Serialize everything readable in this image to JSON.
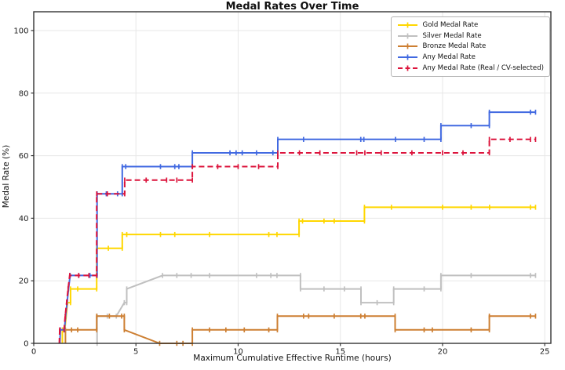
{
  "chart_data": {
    "type": "line",
    "title": "Medal Rates Over Time",
    "xlabel": "Maximum Cumulative Effective Runtime (hours)",
    "ylabel": "Medal Rate (%)",
    "xlim": [
      0,
      25.3
    ],
    "ylim": [
      0,
      106
    ],
    "xticks": [
      0,
      5,
      10,
      15,
      20,
      25
    ],
    "yticks": [
      0,
      20,
      40,
      60,
      80,
      100
    ],
    "grid": true,
    "legend_position": "upper right",
    "series": [
      {
        "name": "Gold Medal Rate",
        "color": "#FFD700",
        "dash": "solid",
        "points": [
          [
            1.4,
            0
          ],
          [
            1.4,
            4.3
          ],
          [
            1.52,
            4.3
          ],
          [
            1.65,
            13.0
          ],
          [
            1.8,
            13.0
          ],
          [
            1.8,
            17.4
          ],
          [
            2.15,
            17.4
          ],
          [
            3.08,
            17.4
          ],
          [
            3.08,
            30.4
          ],
          [
            3.65,
            30.4
          ],
          [
            4.33,
            30.4
          ],
          [
            4.33,
            34.8
          ],
          [
            4.55,
            34.8
          ],
          [
            6.2,
            34.8
          ],
          [
            6.9,
            34.8
          ],
          [
            8.6,
            34.8
          ],
          [
            11.5,
            34.8
          ],
          [
            11.9,
            34.8
          ],
          [
            12.98,
            34.8
          ],
          [
            12.98,
            39.1
          ],
          [
            13.15,
            39.1
          ],
          [
            14.2,
            39.1
          ],
          [
            14.7,
            39.1
          ],
          [
            16.18,
            39.1
          ],
          [
            16.18,
            43.5
          ],
          [
            17.5,
            43.5
          ],
          [
            20.0,
            43.5
          ],
          [
            21.4,
            43.5
          ],
          [
            22.3,
            43.5
          ],
          [
            24.3,
            43.5
          ],
          [
            24.55,
            43.5
          ]
        ]
      },
      {
        "name": "Silver Medal Rate",
        "color": "#C0C0C0",
        "dash": "solid",
        "points": [
          [
            3.1,
            0
          ],
          [
            3.1,
            8.7
          ],
          [
            3.6,
            8.7
          ],
          [
            4.04,
            8.7
          ],
          [
            4.43,
            13.0
          ],
          [
            4.55,
            13.0
          ],
          [
            4.55,
            17.4
          ],
          [
            6.3,
            21.7
          ],
          [
            7.0,
            21.7
          ],
          [
            7.7,
            21.7
          ],
          [
            8.6,
            21.7
          ],
          [
            10.9,
            21.7
          ],
          [
            11.6,
            21.7
          ],
          [
            11.9,
            21.7
          ],
          [
            13.05,
            21.7
          ],
          [
            13.05,
            17.4
          ],
          [
            14.2,
            17.4
          ],
          [
            15.2,
            17.4
          ],
          [
            16.01,
            17.4
          ],
          [
            16.01,
            13.0
          ],
          [
            16.8,
            13.0
          ],
          [
            17.61,
            13.0
          ],
          [
            17.61,
            17.4
          ],
          [
            19.1,
            17.4
          ],
          [
            19.92,
            17.4
          ],
          [
            19.92,
            21.7
          ],
          [
            21.4,
            21.7
          ],
          [
            24.3,
            21.7
          ],
          [
            24.55,
            21.7
          ]
        ]
      },
      {
        "name": "Bronze Medal Rate",
        "color": "#CD7F32",
        "dash": "solid",
        "points": [
          [
            1.55,
            0
          ],
          [
            1.55,
            4.3
          ],
          [
            1.85,
            4.3
          ],
          [
            2.15,
            4.3
          ],
          [
            3.08,
            4.3
          ],
          [
            3.08,
            8.7
          ],
          [
            3.7,
            8.7
          ],
          [
            4.3,
            8.7
          ],
          [
            4.43,
            8.7
          ],
          [
            4.43,
            4.3
          ],
          [
            6.16,
            0
          ],
          [
            7.0,
            0
          ],
          [
            7.3,
            0
          ],
          [
            7.76,
            0
          ],
          [
            7.76,
            4.3
          ],
          [
            8.6,
            4.3
          ],
          [
            9.4,
            4.3
          ],
          [
            10.3,
            4.3
          ],
          [
            11.5,
            4.3
          ],
          [
            11.92,
            4.3
          ],
          [
            11.92,
            8.7
          ],
          [
            13.2,
            8.7
          ],
          [
            13.45,
            8.7
          ],
          [
            14.7,
            8.7
          ],
          [
            16.0,
            8.7
          ],
          [
            16.2,
            8.7
          ],
          [
            17.68,
            8.7
          ],
          [
            17.68,
            4.3
          ],
          [
            19.1,
            4.3
          ],
          [
            19.5,
            4.3
          ],
          [
            21.4,
            4.3
          ],
          [
            22.29,
            4.3
          ],
          [
            22.29,
            8.7
          ],
          [
            24.3,
            8.7
          ],
          [
            24.55,
            8.7
          ]
        ]
      },
      {
        "name": "Any Medal Rate",
        "color": "#4169E1",
        "dash": "solid",
        "points": [
          [
            1.28,
            0
          ],
          [
            1.3,
            4.3
          ],
          [
            1.5,
            4.3
          ],
          [
            1.56,
            8.7
          ],
          [
            1.63,
            13.0
          ],
          [
            1.7,
            17.4
          ],
          [
            1.78,
            21.7
          ],
          [
            2.2,
            21.7
          ],
          [
            2.75,
            21.7
          ],
          [
            3.1,
            21.7
          ],
          [
            3.1,
            47.8
          ],
          [
            3.55,
            47.8
          ],
          [
            4.1,
            47.8
          ],
          [
            4.33,
            47.8
          ],
          [
            4.33,
            56.5
          ],
          [
            4.5,
            56.5
          ],
          [
            6.2,
            56.5
          ],
          [
            6.9,
            56.5
          ],
          [
            7.1,
            56.5
          ],
          [
            7.76,
            56.5
          ],
          [
            7.76,
            60.9
          ],
          [
            9.6,
            60.9
          ],
          [
            9.9,
            60.9
          ],
          [
            10.2,
            60.9
          ],
          [
            10.9,
            60.9
          ],
          [
            11.7,
            60.9
          ],
          [
            11.94,
            60.9
          ],
          [
            11.94,
            65.2
          ],
          [
            13.2,
            65.2
          ],
          [
            16.0,
            65.2
          ],
          [
            16.15,
            65.2
          ],
          [
            17.7,
            65.2
          ],
          [
            19.1,
            65.2
          ],
          [
            19.92,
            65.2
          ],
          [
            19.92,
            69.6
          ],
          [
            21.4,
            69.6
          ],
          [
            22.29,
            69.6
          ],
          [
            22.29,
            73.9
          ],
          [
            24.3,
            73.9
          ],
          [
            24.55,
            73.9
          ]
        ]
      },
      {
        "name": "Any Medal Rate (Real / CV-selected)",
        "color": "#DC143C",
        "dash": "dashed",
        "points": [
          [
            1.25,
            0
          ],
          [
            1.27,
            4.3
          ],
          [
            1.48,
            4.3
          ],
          [
            1.54,
            8.7
          ],
          [
            1.61,
            13.0
          ],
          [
            1.68,
            17.4
          ],
          [
            1.76,
            21.7
          ],
          [
            2.2,
            21.7
          ],
          [
            2.7,
            21.7
          ],
          [
            3.08,
            21.7
          ],
          [
            3.08,
            47.8
          ],
          [
            3.6,
            47.8
          ],
          [
            4.45,
            47.8
          ],
          [
            4.45,
            52.2
          ],
          [
            5.5,
            52.2
          ],
          [
            6.5,
            52.2
          ],
          [
            7.0,
            52.2
          ],
          [
            7.76,
            52.2
          ],
          [
            7.76,
            56.5
          ],
          [
            9.0,
            56.5
          ],
          [
            10.0,
            56.5
          ],
          [
            11.0,
            56.5
          ],
          [
            11.94,
            56.5
          ],
          [
            11.94,
            60.9
          ],
          [
            13.0,
            60.9
          ],
          [
            14.0,
            60.9
          ],
          [
            15.8,
            60.9
          ],
          [
            16.2,
            60.9
          ],
          [
            17.0,
            60.9
          ],
          [
            18.5,
            60.9
          ],
          [
            20.0,
            60.9
          ],
          [
            21.0,
            60.9
          ],
          [
            22.29,
            60.9
          ],
          [
            22.29,
            65.2
          ],
          [
            23.3,
            65.2
          ],
          [
            24.3,
            65.2
          ],
          [
            24.55,
            65.2
          ]
        ]
      }
    ]
  }
}
